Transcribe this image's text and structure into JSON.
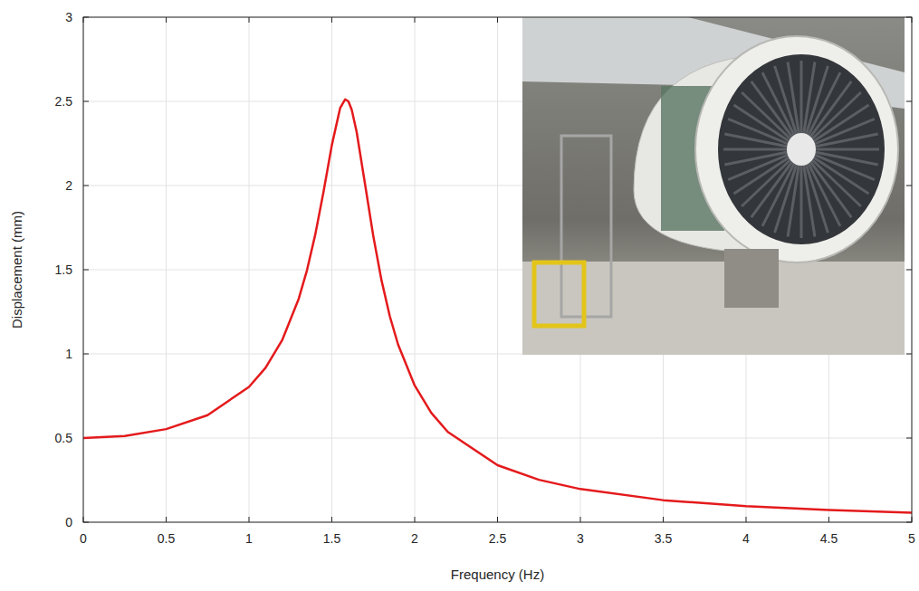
{
  "chart_data": {
    "type": "line",
    "x_label": "Frequency (Hz)",
    "y_label": "Displacement (mm)",
    "x": [
      0,
      0.25,
      0.5,
      0.75,
      1.0,
      1.1,
      1.2,
      1.3,
      1.35,
      1.4,
      1.45,
      1.5,
      1.55,
      1.58,
      1.6,
      1.62,
      1.65,
      1.7,
      1.75,
      1.8,
      1.85,
      1.9,
      2.0,
      2.1,
      2.2,
      2.5,
      2.75,
      3.0,
      3.5,
      4.0,
      4.5,
      5.0
    ],
    "values": [
      0.5,
      0.512,
      0.553,
      0.636,
      0.804,
      0.917,
      1.081,
      1.327,
      1.497,
      1.709,
      1.964,
      2.24,
      2.46,
      2.512,
      2.5,
      2.45,
      2.317,
      2.011,
      1.701,
      1.436,
      1.223,
      1.055,
      0.812,
      0.65,
      0.536,
      0.339,
      0.252,
      0.197,
      0.131,
      0.095,
      0.072,
      0.057
    ],
    "color": "#e41a1c",
    "xlim": [
      0,
      5
    ],
    "ylim": [
      0,
      3
    ],
    "xticks": [
      0,
      0.5,
      1,
      1.5,
      2,
      2.5,
      3,
      3.5,
      4,
      4.5,
      5
    ],
    "yticks": [
      0,
      0.5,
      1,
      1.5,
      2,
      2.5,
      3
    ],
    "grid": true
  }
}
